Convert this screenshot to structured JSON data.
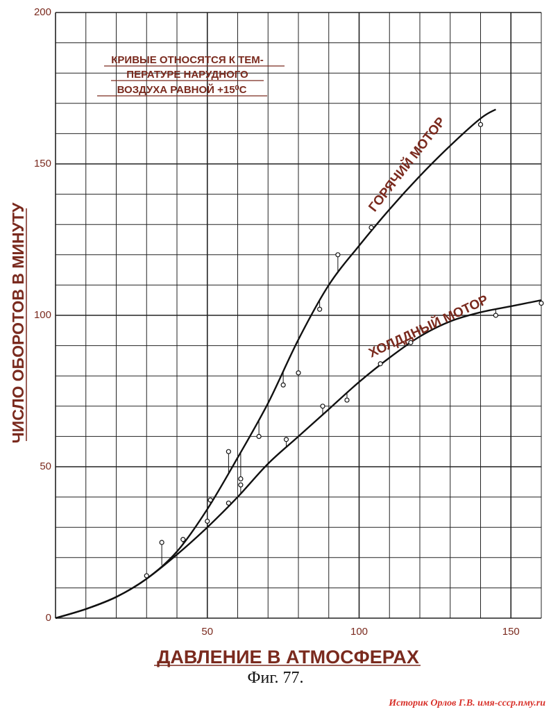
{
  "chart_data": {
    "type": "line",
    "xlabel": "ДАВЛЕНИЕ В АТМОСФЕРАХ",
    "ylabel": "ЧИСЛО ОБОРОТОВ В МИНУТУ",
    "xlim": [
      0,
      160
    ],
    "ylim": [
      0,
      200
    ],
    "x_ticks": [
      50,
      100,
      150
    ],
    "y_ticks": [
      0,
      50,
      100,
      150,
      200
    ],
    "grid": true,
    "annotation": [
      "КРИВЫЕ ОТНОСЯТСЯ К ТЕМ-",
      "ПЕРАТУРЕ НАРУДНОГО",
      "ВОЗДУХА РАВНОЙ +15⁰С"
    ],
    "series": [
      {
        "name": "ГОРЯЧИЙ МОТОР",
        "curve": [
          [
            0,
            0
          ],
          [
            10,
            3
          ],
          [
            20,
            7
          ],
          [
            30,
            13
          ],
          [
            40,
            22
          ],
          [
            50,
            36
          ],
          [
            60,
            53
          ],
          [
            70,
            71
          ],
          [
            80,
            92
          ],
          [
            90,
            110
          ],
          [
            100,
            123
          ],
          [
            110,
            135
          ],
          [
            120,
            146
          ],
          [
            130,
            156
          ],
          [
            140,
            165
          ],
          [
            145,
            168
          ]
        ],
        "points": [
          [
            35,
            25
          ],
          [
            42,
            26
          ],
          [
            51,
            39
          ],
          [
            57,
            55
          ],
          [
            61,
            46
          ],
          [
            67,
            60
          ],
          [
            75,
            77
          ],
          [
            80,
            81
          ],
          [
            87,
            102
          ],
          [
            93,
            120
          ],
          [
            104,
            129
          ],
          [
            140,
            163
          ]
        ]
      },
      {
        "name": "ХОЛДДНЫЙ МОТОР",
        "curve": [
          [
            0,
            0
          ],
          [
            10,
            3
          ],
          [
            20,
            7
          ],
          [
            30,
            13
          ],
          [
            40,
            21
          ],
          [
            50,
            30
          ],
          [
            60,
            40
          ],
          [
            70,
            51
          ],
          [
            80,
            60
          ],
          [
            90,
            69
          ],
          [
            100,
            78
          ],
          [
            110,
            86
          ],
          [
            120,
            93
          ],
          [
            130,
            98
          ],
          [
            140,
            101
          ],
          [
            150,
            103
          ],
          [
            160,
            105
          ]
        ],
        "points": [
          [
            30,
            14
          ],
          [
            50,
            32
          ],
          [
            57,
            38
          ],
          [
            61,
            44
          ],
          [
            76,
            59
          ],
          [
            88,
            70
          ],
          [
            96,
            72
          ],
          [
            107,
            84
          ],
          [
            117,
            91
          ],
          [
            145,
            100
          ],
          [
            160,
            104
          ]
        ]
      }
    ]
  },
  "caption": "Фиг. 77.",
  "watermark": "Историк Орлов Г.В. имя-ссср.пму.ru",
  "colors": {
    "labels": "#7a2a1e",
    "lines": "#111111",
    "grid": "#222222",
    "watermark": "#d8312a"
  }
}
